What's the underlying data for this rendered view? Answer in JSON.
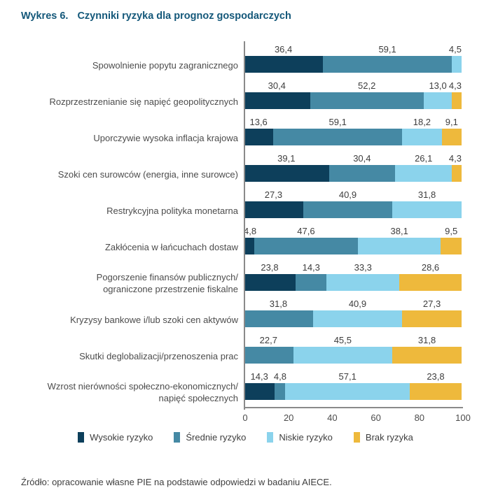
{
  "title": {
    "prefix": "Wykres 6.",
    "text": "Czynniki ryzyka dla prognoz gospodarczych"
  },
  "source": "Źródło: opracowanie własne PIE na podstawie odpowiedzi w badaniu AIECE.",
  "chart_data": {
    "type": "bar",
    "orientation": "horizontal",
    "stacked": true,
    "xlim": [
      0,
      100
    ],
    "x_ticks": [
      "0",
      "20",
      "40",
      "60",
      "80",
      "100"
    ],
    "grid": false,
    "legend_position": "bottom-center",
    "series_colors": {
      "wysokie": "#0d3f5b",
      "srednie": "#4589a4",
      "niskie": "#8bd3ec",
      "brak": "#eeb93c"
    },
    "legend": [
      {
        "key": "wysokie",
        "name": "Wysokie ryzyko"
      },
      {
        "key": "srednie",
        "name": "Średnie ryzyko"
      },
      {
        "key": "niskie",
        "name": "Niskie ryzyko"
      },
      {
        "key": "brak",
        "name": "Brak ryzyka"
      }
    ],
    "rows": [
      {
        "label_lines": [
          "Spowolnienie popytu zagranicznego"
        ],
        "segments": [
          {
            "series": "wysokie",
            "value": 36.4,
            "label": "36,4"
          },
          {
            "series": "srednie",
            "value": 59.1,
            "label": "59,1"
          },
          {
            "series": "niskie",
            "value": 4.5,
            "label": "4,5"
          }
        ]
      },
      {
        "label_lines": [
          "Rozprzestrzenianie się napięć geopolitycznych"
        ],
        "segments": [
          {
            "series": "wysokie",
            "value": 30.4,
            "label": "30,4"
          },
          {
            "series": "srednie",
            "value": 52.2,
            "label": "52,2"
          },
          {
            "series": "niskie",
            "value": 13.0,
            "label": "13,0"
          },
          {
            "series": "brak",
            "value": 4.3,
            "label": "4,3"
          }
        ]
      },
      {
        "label_lines": [
          "Uporczywie wysoka inflacja krajowa"
        ],
        "segments": [
          {
            "series": "wysokie",
            "value": 13.6,
            "label": "13,6"
          },
          {
            "series": "srednie",
            "value": 59.1,
            "label": "59,1"
          },
          {
            "series": "niskie",
            "value": 18.2,
            "label": "18,2"
          },
          {
            "series": "brak",
            "value": 9.1,
            "label": "9,1"
          }
        ]
      },
      {
        "label_lines": [
          "Szoki cen surowców (energia, inne surowce)"
        ],
        "segments": [
          {
            "series": "wysokie",
            "value": 39.1,
            "label": "39,1"
          },
          {
            "series": "srednie",
            "value": 30.4,
            "label": "30,4"
          },
          {
            "series": "niskie",
            "value": 26.1,
            "label": "26,1"
          },
          {
            "series": "brak",
            "value": 4.3,
            "label": "4,3"
          }
        ]
      },
      {
        "label_lines": [
          "Restrykcyjna polityka monetarna"
        ],
        "segments": [
          {
            "series": "wysokie",
            "value": 27.3,
            "label": "27,3"
          },
          {
            "series": "srednie",
            "value": 40.9,
            "label": "40,9"
          },
          {
            "series": "niskie",
            "value": 31.8,
            "label": "31,8"
          }
        ]
      },
      {
        "label_lines": [
          "Zakłócenia w łańcuchach dostaw"
        ],
        "segments": [
          {
            "series": "wysokie",
            "value": 4.8,
            "label": "4,8"
          },
          {
            "series": "srednie",
            "value": 47.6,
            "label": "47,6"
          },
          {
            "series": "niskie",
            "value": 38.1,
            "label": "38,1"
          },
          {
            "series": "brak",
            "value": 9.5,
            "label": "9,5"
          }
        ]
      },
      {
        "label_lines": [
          "Pogorszenie finansów publicznych/",
          "ograniczone przestrzenie fiskalne"
        ],
        "segments": [
          {
            "series": "wysokie",
            "value": 23.8,
            "label": "23,8"
          },
          {
            "series": "srednie",
            "value": 14.3,
            "label": "14,3"
          },
          {
            "series": "niskie",
            "value": 33.3,
            "label": "33,3"
          },
          {
            "series": "brak",
            "value": 28.6,
            "label": "28,6"
          }
        ]
      },
      {
        "label_lines": [
          "Kryzysy bankowe i/lub szoki cen aktywów"
        ],
        "segments": [
          {
            "series": "srednie",
            "value": 31.8,
            "label": "31,8"
          },
          {
            "series": "niskie",
            "value": 40.9,
            "label": "40,9"
          },
          {
            "series": "brak",
            "value": 27.3,
            "label": "27,3"
          }
        ]
      },
      {
        "label_lines": [
          "Skutki deglobalizacji/przenoszenia prac"
        ],
        "segments": [
          {
            "series": "srednie",
            "value": 22.7,
            "label": "22,7"
          },
          {
            "series": "niskie",
            "value": 45.5,
            "label": "45,5"
          },
          {
            "series": "brak",
            "value": 31.8,
            "label": "31,8"
          }
        ]
      },
      {
        "label_lines": [
          "Wzrost nierówności społeczno-ekonomicznych/",
          "napięć społecznych"
        ],
        "segments": [
          {
            "series": "wysokie",
            "value": 14.3,
            "label": "14,3"
          },
          {
            "series": "srednie",
            "value": 4.8,
            "label": "4,8"
          },
          {
            "series": "niskie",
            "value": 57.1,
            "label": "57,1"
          },
          {
            "series": "brak",
            "value": 23.8,
            "label": "23,8"
          }
        ]
      }
    ]
  }
}
